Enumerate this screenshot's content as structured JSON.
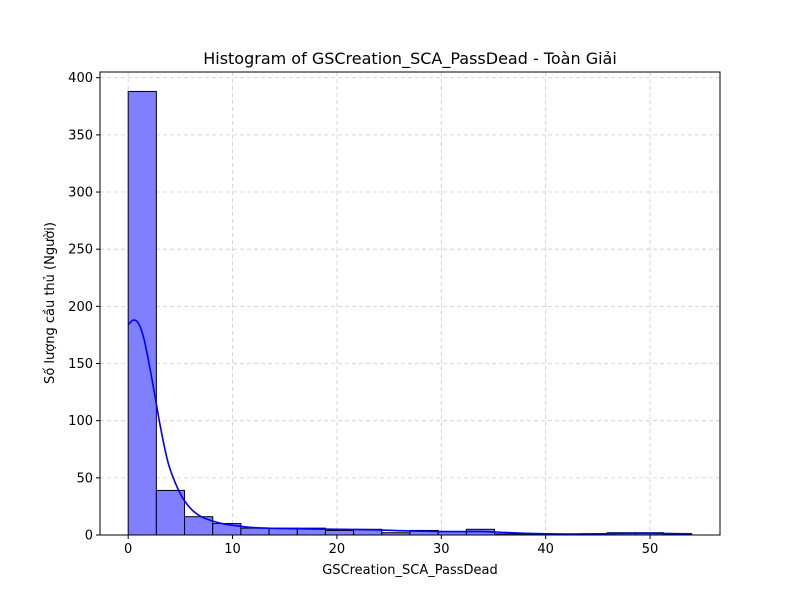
{
  "chart_data": {
    "type": "bar",
    "subtype": "histogram-with-kde",
    "title": "Histogram of GSCreation_SCA_PassDead - Toàn Giải",
    "xlabel": "GSCreation_SCA_PassDead",
    "ylabel": "Số lượng cầu thủ (Người)",
    "xlim": [
      -2.7,
      56.7
    ],
    "ylim": [
      0,
      405
    ],
    "x_ticks": [
      0,
      10,
      20,
      30,
      40,
      50
    ],
    "y_ticks": [
      0,
      50,
      100,
      150,
      200,
      250,
      300,
      350,
      400
    ],
    "grid": true,
    "bins": [
      {
        "x0": 0.0,
        "x1": 2.7,
        "count": 388
      },
      {
        "x0": 2.7,
        "x1": 5.4,
        "count": 39
      },
      {
        "x0": 5.4,
        "x1": 8.1,
        "count": 16
      },
      {
        "x0": 8.1,
        "x1": 10.8,
        "count": 10
      },
      {
        "x0": 10.8,
        "x1": 13.5,
        "count": 6
      },
      {
        "x0": 13.5,
        "x1": 16.2,
        "count": 6
      },
      {
        "x0": 16.2,
        "x1": 18.9,
        "count": 6
      },
      {
        "x0": 18.9,
        "x1": 21.6,
        "count": 4
      },
      {
        "x0": 21.6,
        "x1": 24.3,
        "count": 5
      },
      {
        "x0": 24.3,
        "x1": 27.0,
        "count": 2
      },
      {
        "x0": 27.0,
        "x1": 29.7,
        "count": 4
      },
      {
        "x0": 29.7,
        "x1": 32.4,
        "count": 3
      },
      {
        "x0": 32.4,
        "x1": 35.1,
        "count": 5
      },
      {
        "x0": 35.1,
        "x1": 37.8,
        "count": 1
      },
      {
        "x0": 37.8,
        "x1": 40.5,
        "count": 1
      },
      {
        "x0": 40.5,
        "x1": 43.2,
        "count": 0
      },
      {
        "x0": 43.2,
        "x1": 45.9,
        "count": 1
      },
      {
        "x0": 45.9,
        "x1": 48.6,
        "count": 2
      },
      {
        "x0": 48.6,
        "x1": 51.3,
        "count": 2
      },
      {
        "x0": 51.3,
        "x1": 54.0,
        "count": 1
      }
    ],
    "kde": {
      "x": [
        0,
        0.5,
        1,
        1.5,
        2,
        2.5,
        3,
        3.5,
        4,
        5,
        6,
        7,
        8,
        9,
        10,
        12,
        14,
        16,
        18,
        20,
        22,
        24,
        26,
        28,
        30,
        32,
        34,
        36,
        38,
        40,
        42,
        44,
        46,
        48,
        50,
        52,
        54
      ],
      "y": [
        184,
        188,
        185,
        172,
        150,
        125,
        99,
        76,
        58,
        36,
        23,
        16,
        12.5,
        10,
        8.5,
        6.5,
        5.8,
        5.5,
        5.2,
        5,
        4.8,
        4.4,
        3.8,
        3.3,
        3,
        3,
        3,
        2.3,
        1.5,
        1,
        0.8,
        0.9,
        1.2,
        1.5,
        1.5,
        1.3,
        1
      ]
    },
    "colors": {
      "bar_fill": "#8080ff",
      "bar_edge": "#000000",
      "kde_line": "#0000ff",
      "grid": "#cccccc"
    }
  }
}
